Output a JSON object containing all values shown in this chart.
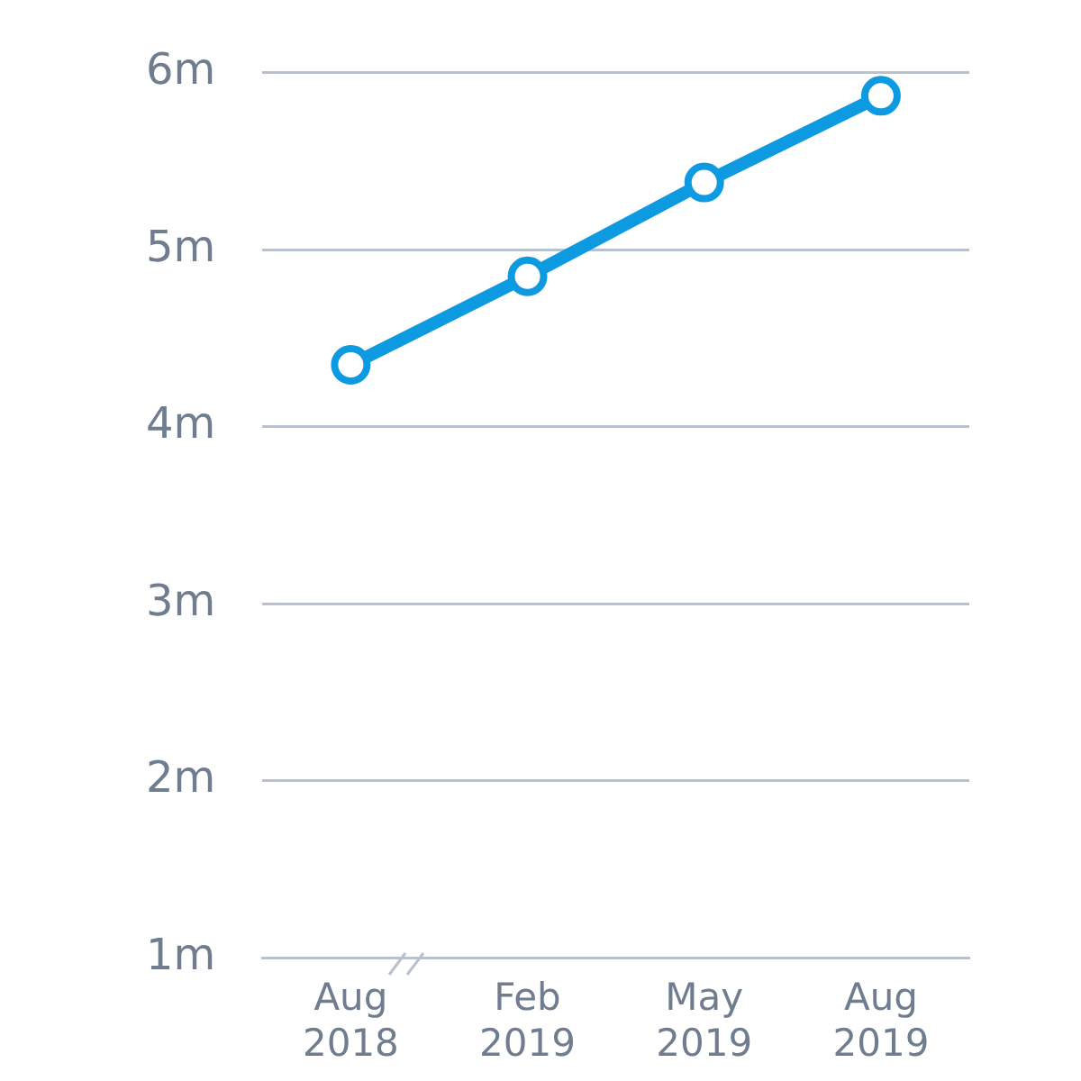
{
  "chart_data": {
    "type": "line",
    "categories": [
      "Aug 2018",
      "Feb 2019",
      "May 2019",
      "Aug 2019"
    ],
    "series": [
      {
        "color": "#0e9ae0",
        "values": [
          4.35,
          4.85,
          5.38,
          5.87
        ]
      }
    ],
    "ylim": [
      1,
      6
    ],
    "yticks": [
      {
        "value": 1,
        "label": "1m"
      },
      {
        "value": 2,
        "label": "2m"
      },
      {
        "value": 3,
        "label": "3m"
      },
      {
        "value": 4,
        "label": "4m"
      },
      {
        "value": 5,
        "label": "5m"
      },
      {
        "value": 6,
        "label": "6m"
      }
    ],
    "grid": "y",
    "marker": "circle",
    "line_style": "solid",
    "legend": false
  }
}
